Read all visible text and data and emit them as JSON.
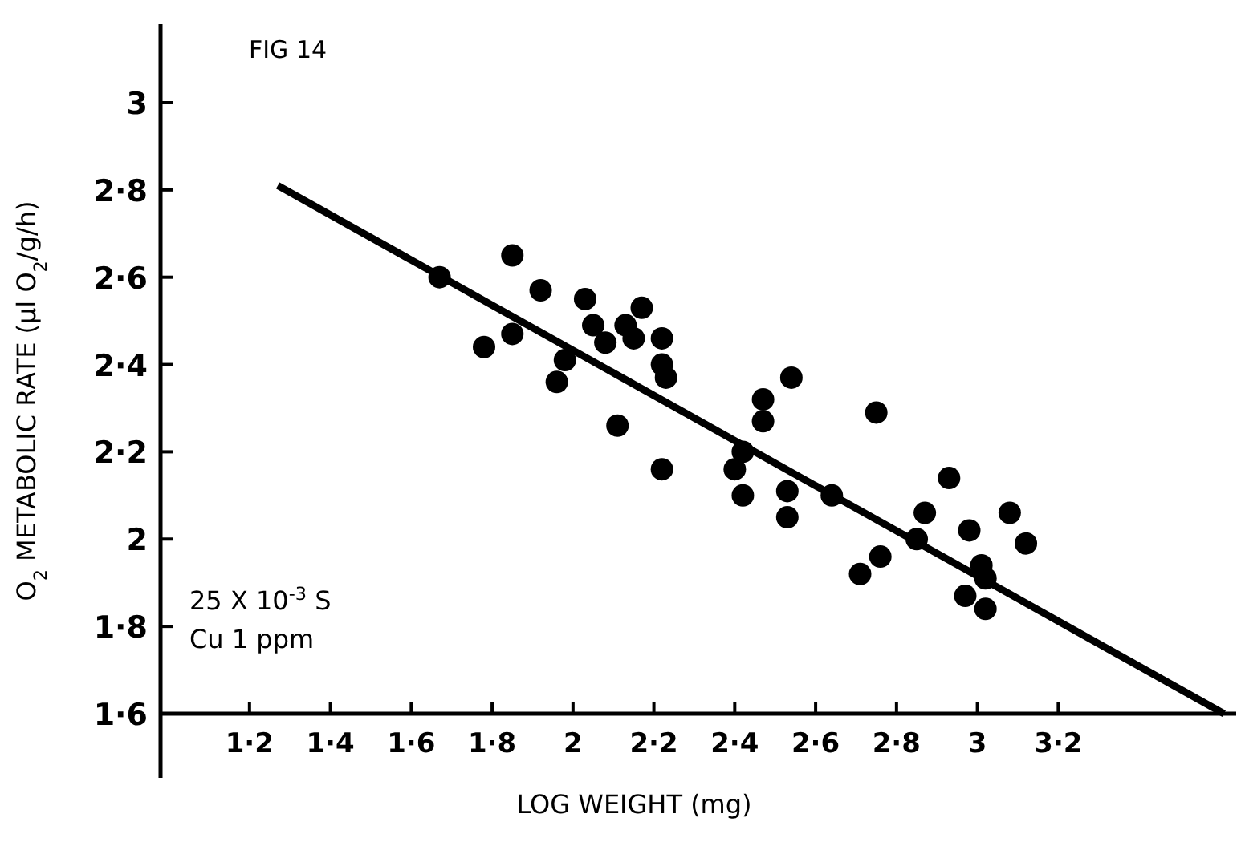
{
  "chart_data": {
    "type": "scatter",
    "xlabel": "LOG WEIGHT (mg)",
    "ylabel": "O$_{2}$ METABOLIC RATE (µl O$_{2}$/g/h)",
    "annotations": [
      "FIG 14",
      "25 X 10$^{-3}$ S",
      "Cu 1 ppm"
    ],
    "xlim": [
      0.98,
      3.64
    ],
    "ylim": [
      1.6,
      3.18
    ],
    "xticks": [
      {
        "value": 1.2,
        "label": "1·2"
      },
      {
        "value": 1.4,
        "label": "1·4"
      },
      {
        "value": 1.6,
        "label": "1·6"
      },
      {
        "value": 1.8,
        "label": "1·8"
      },
      2,
      {
        "value": 2.2,
        "label": "2·2"
      },
      {
        "value": 2.4,
        "label": "2·4"
      },
      {
        "value": 2.6,
        "label": "2·6"
      },
      {
        "value": 2.8,
        "label": "2·8"
      },
      3,
      {
        "value": 3.2,
        "label": "3·2"
      }
    ],
    "yticks": [
      {
        "value": 1.6,
        "label": "1·6"
      },
      {
        "value": 1.8,
        "label": "1·8"
      },
      2,
      {
        "value": 2.2,
        "label": "2·2"
      },
      {
        "value": 2.4,
        "label": "2·4"
      },
      {
        "value": 2.6,
        "label": "2·6"
      },
      {
        "value": 2.8,
        "label": "2·8"
      },
      3
    ],
    "grid": false,
    "marker": "circle",
    "series": [
      {
        "color": "#000000",
        "x": [
          1.67,
          1.85,
          1.92,
          2.03,
          2.17,
          2.05,
          2.13,
          2.15,
          2.22,
          1.85,
          1.78,
          2.08,
          1.98,
          1.96,
          2.22,
          2.23,
          2.11,
          2.22,
          2.4,
          2.42,
          2.42,
          2.54,
          2.47,
          2.47,
          2.53,
          2.53,
          2.64,
          2.75,
          2.93,
          2.87,
          2.85,
          2.76,
          2.71,
          2.98,
          3.08,
          3.12,
          3.01,
          3.02,
          2.97,
          3.02
        ],
        "values": [
          2.6,
          2.65,
          2.57,
          2.55,
          2.53,
          2.49,
          2.49,
          2.46,
          2.46,
          2.47,
          2.44,
          2.45,
          2.41,
          2.36,
          2.4,
          2.37,
          2.26,
          2.16,
          2.16,
          2.2,
          2.1,
          2.37,
          2.32,
          2.27,
          2.11,
          2.05,
          2.1,
          2.29,
          2.14,
          2.06,
          2.0,
          1.96,
          1.92,
          2.02,
          2.06,
          1.99,
          1.94,
          1.91,
          1.87,
          1.84
        ]
      },
      {
        "type": "line",
        "marker": "none",
        "color": "#000000",
        "x": [
          1.27,
          3.61
        ],
        "values": [
          2.81,
          1.6
        ]
      }
    ]
  }
}
